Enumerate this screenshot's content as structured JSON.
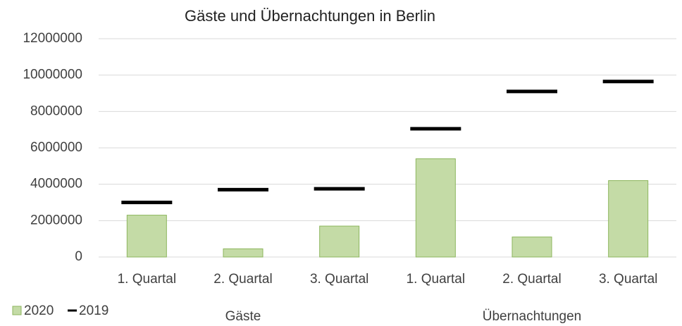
{
  "chart_data": {
    "type": "bar",
    "title": "Gäste und Übernachtungen in Berlin",
    "categories": [
      "1. Quartal",
      "2. Quartal",
      "3. Quartal",
      "1. Quartal",
      "2. Quartal",
      "3. Quartal"
    ],
    "groups": [
      "Gäste",
      "Übernachtungen"
    ],
    "series": [
      {
        "name": "2020",
        "style": "bar",
        "color": "#c4dba6",
        "values": [
          2300000,
          450000,
          1700000,
          5400000,
          1100000,
          4200000
        ]
      },
      {
        "name": "2019",
        "style": "dash",
        "color": "#000000",
        "values": [
          3000000,
          3700000,
          3750000,
          7050000,
          9100000,
          9650000
        ]
      }
    ],
    "ylim": [
      0,
      12000000
    ],
    "yticks": [
      0,
      2000000,
      4000000,
      6000000,
      8000000,
      10000000,
      12000000
    ],
    "grid": true,
    "legend": "bottom-left"
  }
}
